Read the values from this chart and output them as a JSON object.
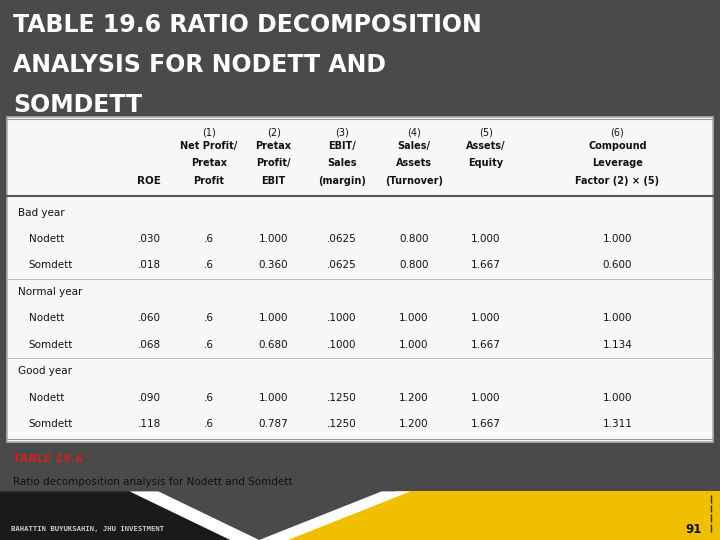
{
  "title_line1": "TABLE 19.6 RATIO DECOMPOSITION",
  "title_line2": "ANALYSIS FOR NODETT AND",
  "title_line3": "SOMDETT",
  "title_bg": "#4a4a4a",
  "title_color": "#ffffff",
  "table_bg": "#f0f0f0",
  "footer_label": "TABLE 19.6",
  "footer_caption": "Ratio decomposition analysis for Nodett and Somdett",
  "bottom_text": "BAHATTIN BUYUKSAHIN, JHU INVESTMENT",
  "page_num": "91",
  "header_nums": [
    "(1)",
    "(2)",
    "(3)",
    "(4)",
    "(5)",
    "(6)"
  ],
  "sub_headers": [
    [
      "Net Profit/",
      "Pretax",
      "Profit"
    ],
    [
      "Pretax",
      "Profit/",
      "EBIT"
    ],
    [
      "EBIT/",
      "Sales",
      "(margin)"
    ],
    [
      "Sales/",
      "Assets",
      "(Turnover)"
    ],
    [
      "Assets/",
      "Equity",
      ""
    ],
    [
      "Compound",
      "Leverage",
      "Factor (2) × (5)"
    ]
  ],
  "rows": [
    {
      "label": "Bad year",
      "indent": 0,
      "values": [
        "",
        "",
        "",
        "",
        "",
        "",
        ""
      ],
      "section": true
    },
    {
      "label": "Nodett",
      "indent": 1,
      "values": [
        ".030",
        ".6",
        "1.000",
        ".0625",
        "0.800",
        "1.000",
        "1.000"
      ],
      "section": false
    },
    {
      "label": "Somdett",
      "indent": 1,
      "values": [
        ".018",
        ".6",
        "0.360",
        ".0625",
        "0.800",
        "1.667",
        "0.600"
      ],
      "section": false
    },
    {
      "label": "Normal year",
      "indent": 0,
      "values": [
        "",
        "",
        "",
        "",
        "",
        "",
        ""
      ],
      "section": true
    },
    {
      "label": "Nodett",
      "indent": 1,
      "values": [
        ".060",
        ".6",
        "1.000",
        ".1000",
        "1.000",
        "1.000",
        "1.000"
      ],
      "section": false
    },
    {
      "label": "Somdett",
      "indent": 1,
      "values": [
        ".068",
        ".6",
        "0.680",
        ".1000",
        "1.000",
        "1.667",
        "1.134"
      ],
      "section": false
    },
    {
      "label": "Good year",
      "indent": 0,
      "values": [
        "",
        "",
        "",
        "",
        "",
        "",
        ""
      ],
      "section": true
    },
    {
      "label": "Nodett",
      "indent": 1,
      "values": [
        ".090",
        ".6",
        "1.000",
        ".1250",
        "1.200",
        "1.000",
        "1.000"
      ],
      "section": false
    },
    {
      "label": "Somdett",
      "indent": 1,
      "values": [
        ".118",
        ".6",
        "0.787",
        ".1250",
        "1.200",
        "1.667",
        "1.311"
      ],
      "section": false
    }
  ]
}
